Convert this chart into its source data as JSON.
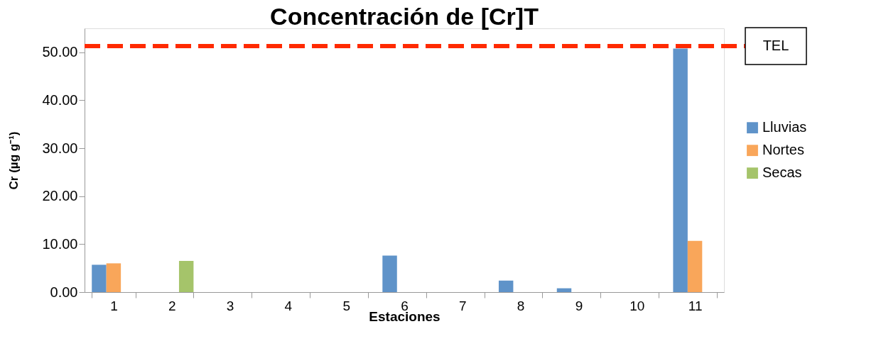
{
  "chart_data": {
    "type": "bar",
    "title": "Concentración de [Cr]T",
    "xlabel": "Estaciones",
    "ylabel": "Cr (µg g⁻¹)",
    "categories": [
      "1",
      "2",
      "3",
      "4",
      "5",
      "6",
      "7",
      "8",
      "9",
      "10",
      "11"
    ],
    "series": [
      {
        "name": "Lluvias",
        "color": "#5f93c9",
        "values": [
          5.7,
          null,
          null,
          null,
          null,
          7.6,
          null,
          2.4,
          0.8,
          null,
          50.8
        ]
      },
      {
        "name": "Nortes",
        "color": "#f9a65a",
        "values": [
          6.0,
          null,
          null,
          null,
          null,
          null,
          null,
          null,
          null,
          null,
          10.7
        ]
      },
      {
        "name": "Secas",
        "color": "#a5c46a",
        "values": [
          null,
          6.5,
          null,
          null,
          null,
          null,
          null,
          null,
          null,
          null,
          null
        ]
      }
    ],
    "ylim": [
      0,
      55
    ],
    "yticks": [
      {
        "value": 0,
        "label": "0.00"
      },
      {
        "value": 10,
        "label": "10.00"
      },
      {
        "value": 20,
        "label": "20.00"
      },
      {
        "value": 30,
        "label": "30.00"
      },
      {
        "value": 40,
        "label": "40.00"
      },
      {
        "value": 50,
        "label": "50.00"
      }
    ],
    "ref_lines": [
      {
        "axis": "y",
        "value": 51.3,
        "label": "TEL",
        "color": "#ff2a00",
        "line_style": "dashed"
      }
    ],
    "grid": false,
    "legend": "right"
  }
}
